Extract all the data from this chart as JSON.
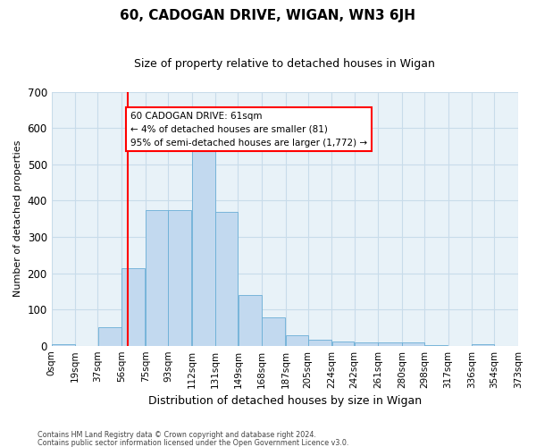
{
  "title": "60, CADOGAN DRIVE, WIGAN, WN3 6JH",
  "subtitle": "Size of property relative to detached houses in Wigan",
  "xlabel": "Distribution of detached houses by size in Wigan",
  "ylabel": "Number of detached properties",
  "footer1": "Contains HM Land Registry data © Crown copyright and database right 2024.",
  "footer2": "Contains public sector information licensed under the Open Government Licence v3.0.",
  "bin_labels": [
    "0sqm",
    "19sqm",
    "37sqm",
    "56sqm",
    "75sqm",
    "93sqm",
    "112sqm",
    "131sqm",
    "149sqm",
    "168sqm",
    "187sqm",
    "205sqm",
    "224sqm",
    "242sqm",
    "261sqm",
    "280sqm",
    "298sqm",
    "317sqm",
    "336sqm",
    "354sqm",
    "373sqm"
  ],
  "bin_edges": [
    0,
    19,
    37,
    56,
    75,
    93,
    112,
    131,
    149,
    168,
    187,
    205,
    224,
    242,
    261,
    280,
    298,
    317,
    336,
    354,
    373
  ],
  "bar_heights": [
    5,
    0,
    50,
    213,
    375,
    375,
    543,
    370,
    140,
    77,
    30,
    17,
    12,
    10,
    8,
    8,
    2,
    0,
    3,
    0
  ],
  "bar_color": "#c2d9ef",
  "bar_edge_color": "#6aaed6",
  "grid_color": "#c8dcea",
  "bg_color": "#e8f2f8",
  "annotation_text": "60 CADOGAN DRIVE: 61sqm\n← 4% of detached houses are smaller (81)\n95% of semi-detached houses are larger (1,772) →",
  "red_line_x": 61,
  "ylim_max": 700,
  "yticks": [
    0,
    100,
    200,
    300,
    400,
    500,
    600,
    700
  ]
}
